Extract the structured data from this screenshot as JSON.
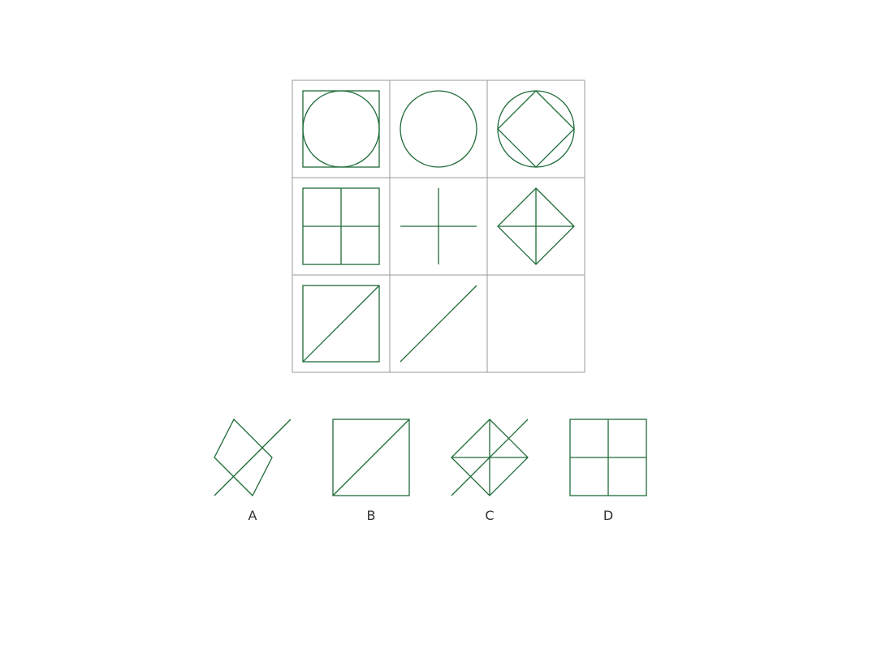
{
  "colors": {
    "background": "#ffffff",
    "grid_line": "#9a9a9a",
    "figure_stroke": "#1e6b38",
    "label_text": "#333333"
  },
  "matrix": {
    "cells": [
      [
        "square-with-inscribed-circle",
        "circle",
        "circle-with-inscribed-diamond"
      ],
      [
        "square-with-cross",
        "cross",
        "diamond-with-cross"
      ],
      [
        "square-with-diagonal",
        "diagonal",
        "missing"
      ]
    ]
  },
  "options": [
    {
      "label": "A",
      "figure": "diamond-with-diagonal"
    },
    {
      "label": "B",
      "figure": "square-with-diagonal"
    },
    {
      "label": "C",
      "figure": "diamond-with-cross-and-diagonal"
    },
    {
      "label": "D",
      "figure": "square-with-cross"
    }
  ]
}
